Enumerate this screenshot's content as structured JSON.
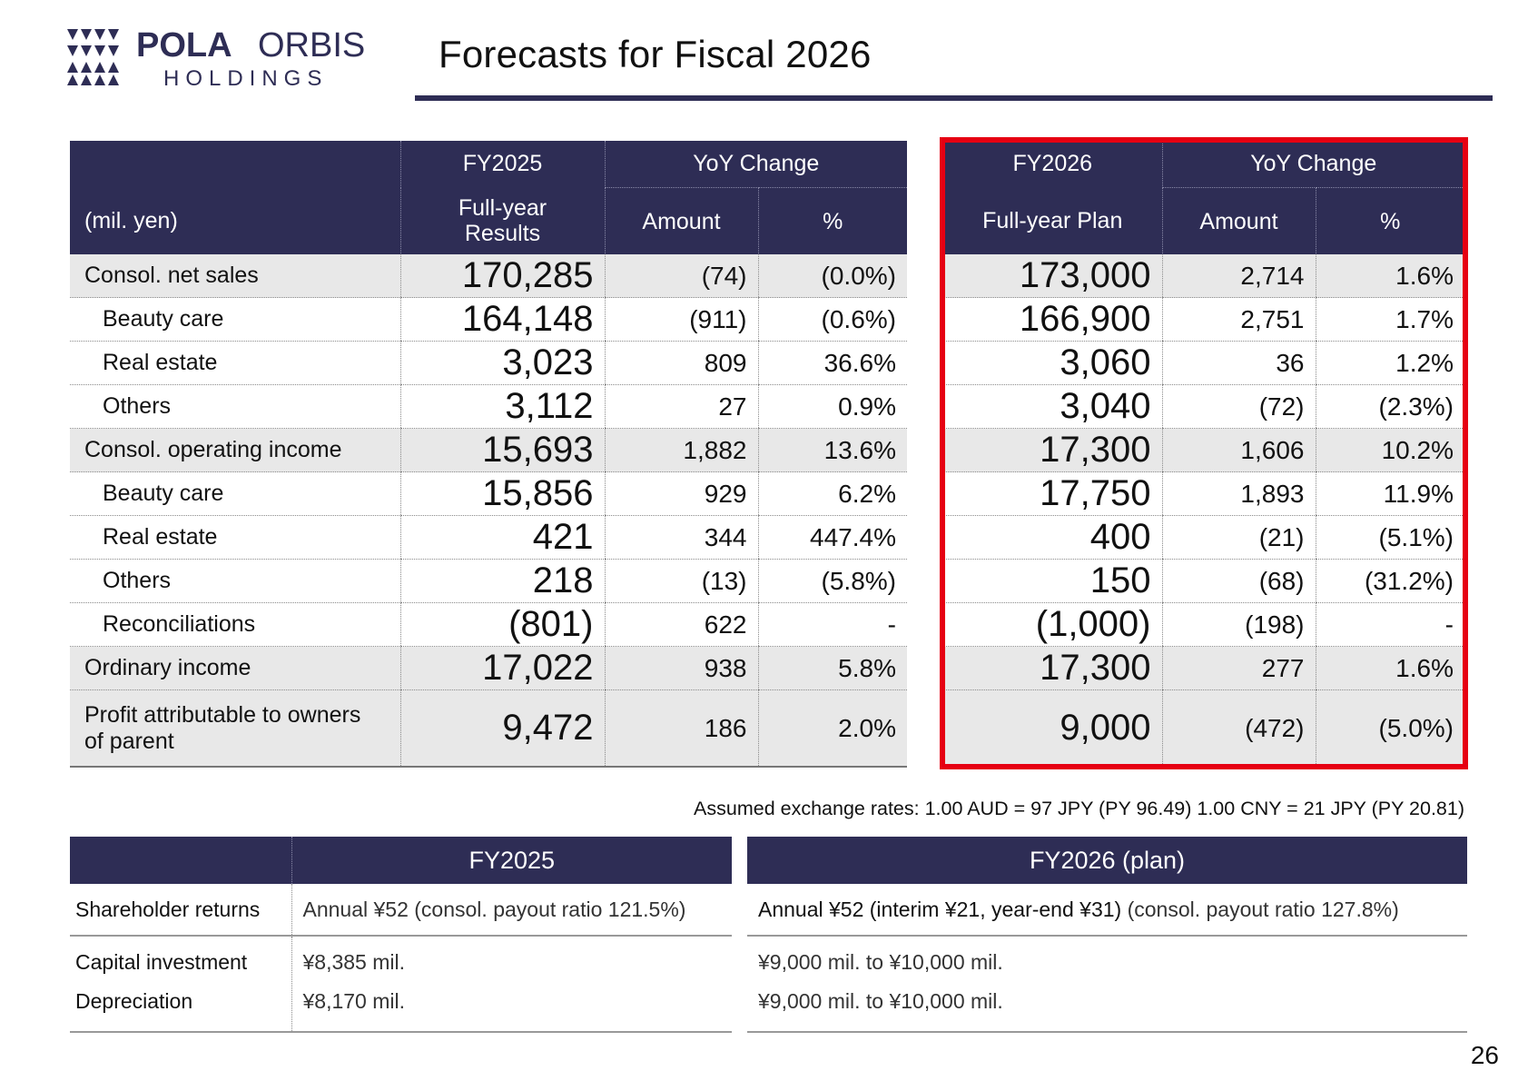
{
  "logo": {
    "line1_bold": "POLA",
    "line1_light": "ORBIS",
    "line2": "HOLDINGS"
  },
  "title": "Forecasts for Fiscal 2026",
  "colors": {
    "navy": "#2e2d55",
    "highlight_frame": "#e60012",
    "row_shade": "#e8e8e8"
  },
  "main_table": {
    "unit_label": "(mil. yen)",
    "fy2025": {
      "year": "FY2025",
      "sub": "Full-year Results",
      "sub_line1": "Full-year",
      "sub_line2": "Results"
    },
    "fy2026": {
      "year": "FY2026",
      "sub": "Full-year Plan"
    },
    "yoy_label": "YoY Change",
    "amount_label": "Amount",
    "pct_label": "%",
    "rows": [
      {
        "label": "Consol. net sales",
        "fy25": "170,285",
        "fy25_amt": "(74)",
        "fy25_pct": "(0.0%)",
        "fy26": "173,000",
        "fy26_amt": "2,714",
        "fy26_pct": "1.6%"
      },
      {
        "label": "Beauty care",
        "fy25": "164,148",
        "fy25_amt": "(911)",
        "fy25_pct": "(0.6%)",
        "fy26": "166,900",
        "fy26_amt": "2,751",
        "fy26_pct": "1.7%"
      },
      {
        "label": "Real estate",
        "fy25": "3,023",
        "fy25_amt": "809",
        "fy25_pct": "36.6%",
        "fy26": "3,060",
        "fy26_amt": "36",
        "fy26_pct": "1.2%"
      },
      {
        "label": "Others",
        "fy25": "3,112",
        "fy25_amt": "27",
        "fy25_pct": "0.9%",
        "fy26": "3,040",
        "fy26_amt": "(72)",
        "fy26_pct": "(2.3%)"
      },
      {
        "label": "Consol. operating income",
        "fy25": "15,693",
        "fy25_amt": "1,882",
        "fy25_pct": "13.6%",
        "fy26": "17,300",
        "fy26_amt": "1,606",
        "fy26_pct": "10.2%"
      },
      {
        "label": "Beauty care",
        "fy25": "15,856",
        "fy25_amt": "929",
        "fy25_pct": "6.2%",
        "fy26": "17,750",
        "fy26_amt": "1,893",
        "fy26_pct": "11.9%"
      },
      {
        "label": "Real estate",
        "fy25": "421",
        "fy25_amt": "344",
        "fy25_pct": "447.4%",
        "fy26": "400",
        "fy26_amt": "(21)",
        "fy26_pct": "(5.1%)"
      },
      {
        "label": "Others",
        "fy25": "218",
        "fy25_amt": "(13)",
        "fy25_pct": "(5.8%)",
        "fy26": "150",
        "fy26_amt": "(68)",
        "fy26_pct": "(31.2%)"
      },
      {
        "label": "Reconciliations",
        "fy25": "(801)",
        "fy25_amt": "622",
        "fy25_pct": "-",
        "fy26": "(1,000)",
        "fy26_amt": "(198)",
        "fy26_pct": "-"
      },
      {
        "label": "Ordinary income",
        "fy25": "17,022",
        "fy25_amt": "938",
        "fy25_pct": "5.8%",
        "fy26": "17,300",
        "fy26_amt": "277",
        "fy26_pct": "1.6%"
      },
      {
        "label": "Profit attributable to owners of parent",
        "label_line1": "Profit attributable to owners",
        "label_line2": "of parent",
        "fy25": "9,472",
        "fy25_amt": "186",
        "fy25_pct": "2.0%",
        "fy26": "9,000",
        "fy26_amt": "(472)",
        "fy26_pct": "(5.0%)"
      }
    ]
  },
  "fx_note": "Assumed exchange rates: 1.00 AUD = 97 JPY (PY 96.49) 1.00 CNY = 21 JPY (PY 20.81)",
  "bottom_table": {
    "fy2025_header": "FY2025",
    "fy2026_header": "FY2026 (plan)",
    "shareholder_label": "Shareholder returns",
    "shareholder_fy25": "Annual ¥52 (consol. payout ratio 121.5%)",
    "shareholder_fy26_main": "Annual ¥52 (interim ¥21, year-end ¥31)",
    "shareholder_fy26_tail": " (consol. payout ratio 127.8%)",
    "capex_label": "Capital investment",
    "capex_fy25": "¥8,385 mil.",
    "capex_fy26": "¥9,000 mil. to ¥10,000 mil.",
    "dep_label": "Depreciation",
    "dep_fy25": "¥8,170 mil.",
    "dep_fy26": "¥9,000 mil. to ¥10,000 mil."
  },
  "page_number": "26"
}
